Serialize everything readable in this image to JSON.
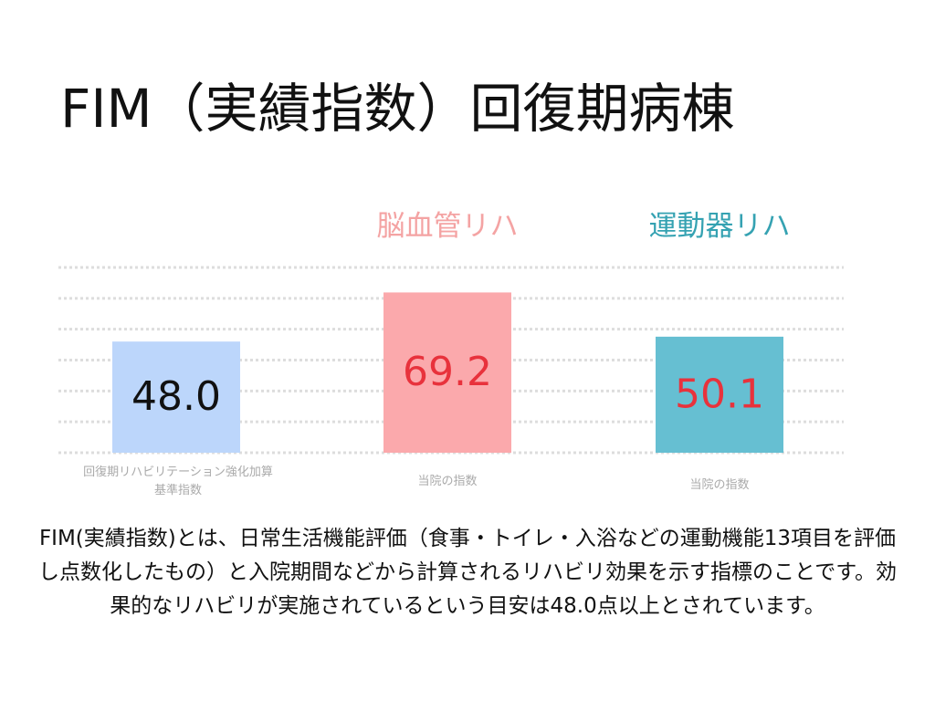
{
  "title": "FIM（実績指数）回復期病棟",
  "chart_data": {
    "type": "bar",
    "categories": [
      "回復期リハビリテーション強化加算\n基準指数",
      "当院の指数",
      "当院の指数"
    ],
    "values": [
      48.0,
      69.2,
      50.1
    ],
    "labels": [
      "48.0",
      "69.2",
      "50.1"
    ],
    "bar_colors": [
      "#bcd6fb",
      "#fba9ac",
      "#66bfd2"
    ],
    "label_colors": [
      "#111111",
      "#e8323c",
      "#e8323c"
    ],
    "series_labels": [
      "脳血管リハ",
      "運動器リハ"
    ],
    "ylim": [
      0,
      80
    ],
    "grid": true
  },
  "description": "FIM(実績指数)とは、日常生活機能評価（食事・トイレ・入浴などの運動機能13項目を評価し点数化したもの）と入院期間などから計算されるリハビリ効果を示す指標のことです。効果的なリハビリが実施されているという目安は48.0点以上とされています。"
}
